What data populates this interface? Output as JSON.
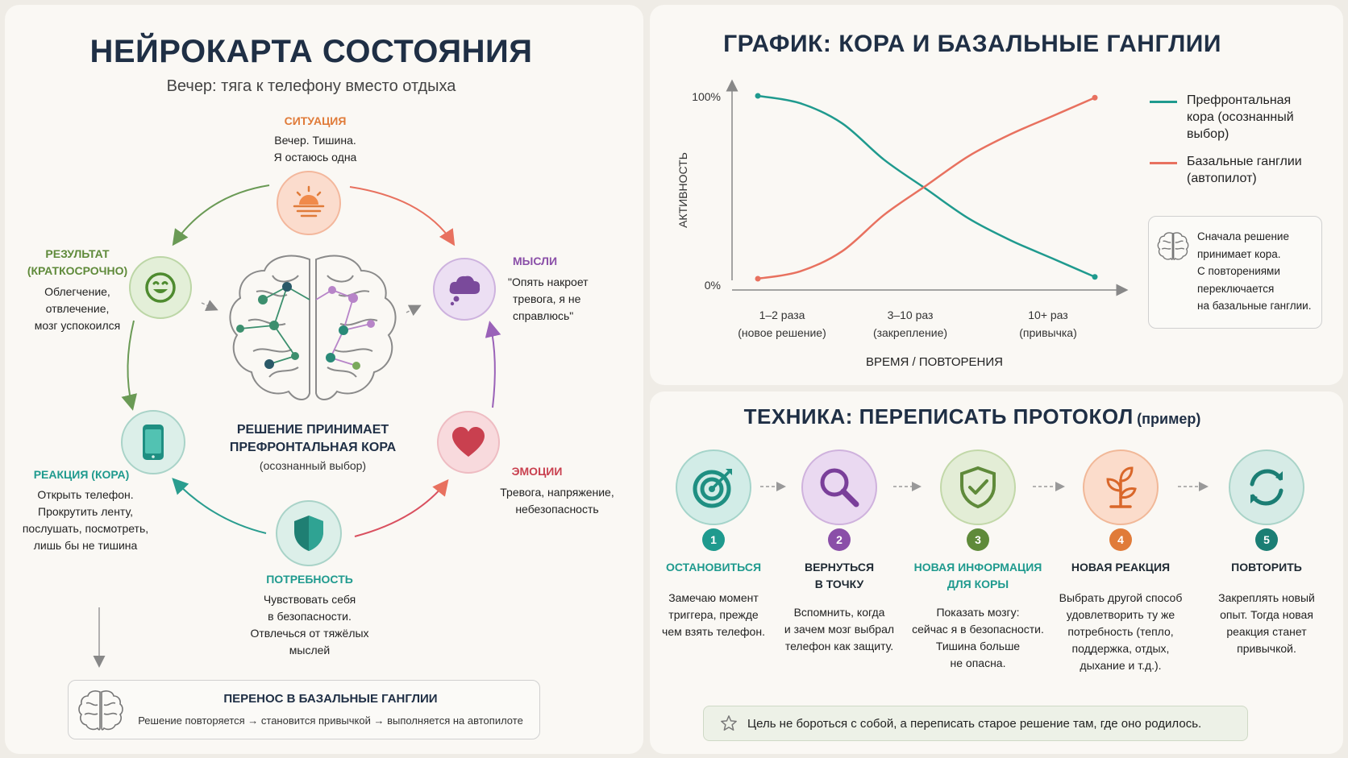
{
  "neuromap": {
    "title": "НЕЙРОКАРТА СОСТОЯНИЯ",
    "subtitle": "Вечер: тяга к телефону вместо отдыха",
    "situation": {
      "title": "СИТУАЦИЯ",
      "lines": [
        "Вечер. Тишина.",
        "Я остаюсь одна"
      ]
    },
    "thoughts": {
      "title": "МЫСЛИ",
      "lines": [
        "\"Опять накроет",
        "тревога, я не",
        "справлюсь\""
      ]
    },
    "emotions": {
      "title": "ЭМОЦИИ",
      "lines": [
        "Тревога, напряжение,",
        "небезопасность"
      ]
    },
    "need": {
      "title": "ПОТРЕБНОСТЬ",
      "lines": [
        "Чувствовать себя",
        "в безопасности.",
        "Отвлечься от тяжёлых",
        "мыслей"
      ]
    },
    "reaction": {
      "title": "РЕАКЦИЯ (КОРА)",
      "lines": [
        "Открыть телефон.",
        "Прокрутить ленту,",
        "послушать, посмотреть,",
        "лишь бы не тишина"
      ]
    },
    "result": {
      "title_lines": [
        "РЕЗУЛЬТАТ",
        "(КРАТКОСРОЧНО)"
      ],
      "lines": [
        "Облегчение,",
        "отвлечение,",
        "мозг успокоился"
      ]
    },
    "center": {
      "title_lines": [
        "РЕШЕНИЕ ПРИНИМАЕТ",
        "ПРЕФРОНТАЛЬНАЯ КОРА"
      ],
      "note": "(осознанный выбор)"
    },
    "transfer": {
      "title": "ПЕРЕНОС В БАЗАЛЬНЫЕ ГАНГЛИИ",
      "text": "Решение повторяется → становится привычкой → выполняется на автопилоте"
    }
  },
  "chart": {
    "title": "ГРАФИК: КОРА И БАЗАЛЬНЫЕ ГАНГЛИИ",
    "ylabel": "АКТИВНОСТЬ",
    "xlabel": "ВРЕМЯ / ПОВТОРЕНИЯ",
    "ytick_top": "100%",
    "ytick_bottom": "0%",
    "xticks": [
      {
        "line1": "1–2 раза",
        "line2": "(новое решение)"
      },
      {
        "line1": "3–10 раз",
        "line2": "(закрепление)"
      },
      {
        "line1": "10+ раз",
        "line2": "(привычка)"
      }
    ],
    "legend": [
      {
        "lines": [
          "Префронтальная",
          "кора (осознанный",
          "выбор)"
        ],
        "color": "#1f9a8e"
      },
      {
        "lines": [
          "Базальные ганглии",
          "(автопилот)"
        ],
        "color": "#e8715f"
      }
    ],
    "note_lines": [
      "Сначала решение",
      "принимает кора.",
      "С повторениями",
      "переключается",
      "на базальные ганглии."
    ]
  },
  "chart_data": {
    "type": "line",
    "x": [
      0,
      0.25,
      0.5,
      0.75,
      1.0,
      1.25,
      1.5,
      1.75,
      2.0
    ],
    "categories": [
      "1–2 раза",
      "3–10 раз",
      "10+ раз"
    ],
    "series": [
      {
        "name": "Префронтальная кора (осознанный выбор)",
        "values": [
          100,
          96,
          85,
          65,
          49,
          33,
          21,
          11,
          1
        ],
        "color": "#1f9a8e"
      },
      {
        "name": "Базальные ганглии (автопилот)",
        "values": [
          0,
          4,
          15,
          35,
          51,
          67,
          79,
          89,
          99
        ],
        "color": "#e8715f"
      }
    ],
    "xlabel": "ВРЕМЯ / ПОВТОРЕНИЯ",
    "ylabel": "АКТИВНОСТЬ",
    "ylim": [
      0,
      100
    ]
  },
  "technique": {
    "title_main": "ТЕХНИКА: ПЕРЕПИСАТЬ ПРОТОКОЛ",
    "title_small": "(пример)",
    "steps": [
      {
        "num": "1",
        "title_lines": [
          "ОСТАНОВИТЬСЯ"
        ],
        "lines": [
          "Замечаю момент",
          "триггера, прежде",
          "чем взять телефон."
        ],
        "color": "#1f9a8e"
      },
      {
        "num": "2",
        "title_lines": [
          "ВЕРНУТЬСЯ",
          "В ТОЧКУ"
        ],
        "lines": [
          "Вспомнить, когда",
          "и зачем мозг выбрал",
          "телефон как защиту."
        ],
        "color": "#8a4fa8"
      },
      {
        "num": "3",
        "title_lines": [
          "НОВАЯ ИНФОРМАЦИЯ",
          "ДЛЯ КОРЫ"
        ],
        "lines": [
          "Показать мозгу:",
          "сейчас я в безопасности.",
          "Тишина больше",
          "не опасна."
        ],
        "color": "#5f8a3a"
      },
      {
        "num": "4",
        "title_lines": [
          "НОВАЯ РЕАКЦИЯ"
        ],
        "lines": [
          "Выбрать другой способ",
          "удовлетворить ту же",
          "потребность (тепло,",
          "поддержка, отдых,",
          "дыхание и т.д.)."
        ],
        "color": "#e07b39"
      },
      {
        "num": "5",
        "title_lines": [
          "ПОВТОРИТЬ"
        ],
        "lines": [
          "Закреплять новый",
          "опыт. Тогда новая",
          "реакция станет",
          "привычкой."
        ],
        "color": "#1b7e74"
      }
    ],
    "goal": "Цель не бороться с собой, а переписать старое решение там, где оно родилось."
  },
  "colors": {
    "teal": "#1f9a8e",
    "coral": "#e8715f",
    "purple": "#8a4fa8",
    "green": "#5f8a3a",
    "orange": "#e07b39",
    "navy": "#1f2f45"
  }
}
